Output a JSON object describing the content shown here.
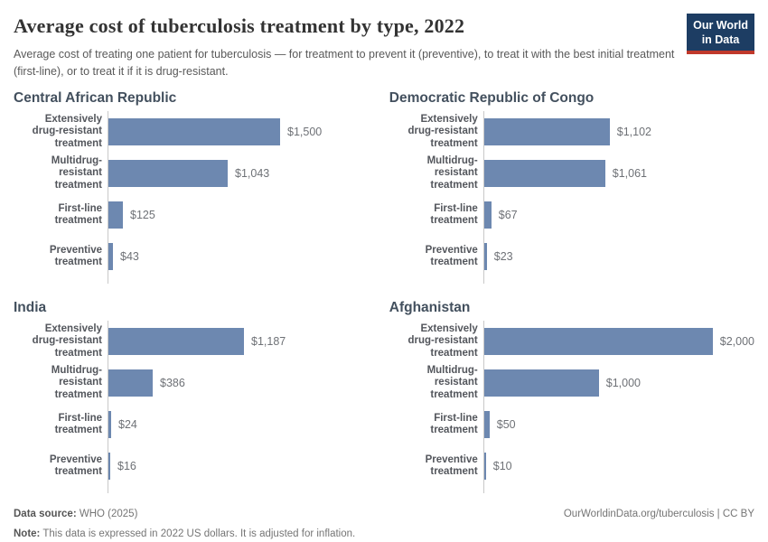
{
  "header": {
    "title": "Average cost of tuberculosis treatment by type, 2022",
    "subtitle": "Average cost of treating one patient for tuberculosis — for treatment to prevent it (preventive), to treat it with the best initial treatment (first-line), or to treat it if it is drug-resistant.",
    "logo": {
      "line1": "Our World",
      "line2": "in Data"
    }
  },
  "chart_data": {
    "type": "bar",
    "orientation": "horizontal",
    "title": "Average cost of tuberculosis treatment by type, 2022",
    "unit": "2022 US dollars",
    "xlim": [
      0,
      2000
    ],
    "grid": false,
    "legend": "none",
    "categories": [
      "Extensively drug-resistant treatment",
      "Multidrug-resistant treatment",
      "First-line treatment",
      "Preventive treatment"
    ],
    "category_labels": [
      "Extensively\ndrug-resistant\ntreatment",
      "Multidrug-resistant\ntreatment",
      "First-line treatment",
      "Preventive\ntreatment"
    ],
    "panels": [
      {
        "title": "Central African Republic",
        "values": [
          1500,
          1043,
          125,
          43
        ],
        "value_labels": [
          "$1,500",
          "$1,043",
          "$125",
          "$43"
        ]
      },
      {
        "title": "Democratic Republic of Congo",
        "values": [
          1102,
          1061,
          67,
          23
        ],
        "value_labels": [
          "$1,102",
          "$1,061",
          "$67",
          "$23"
        ]
      },
      {
        "title": "India",
        "values": [
          1187,
          386,
          24,
          16
        ],
        "value_labels": [
          "$1,187",
          "$386",
          "$24",
          "$16"
        ]
      },
      {
        "title": "Afghanistan",
        "values": [
          2000,
          1000,
          50,
          10
        ],
        "value_labels": [
          "$2,000",
          "$1,000",
          "$50",
          "$10"
        ]
      }
    ],
    "colors": {
      "bar": "#6d88b0",
      "axis_line": "#c9c9c9",
      "logo_navy": "#1d3d63",
      "logo_red": "#c0392b"
    }
  },
  "footer": {
    "source_label": "Data source:",
    "source_value": " WHO (2025)",
    "note_label": "Note:",
    "note_value": " This data is expressed in 2022 US dollars. It is adjusted for inflation.",
    "link": "OurWorldinData.org/tuberculosis | CC BY"
  }
}
